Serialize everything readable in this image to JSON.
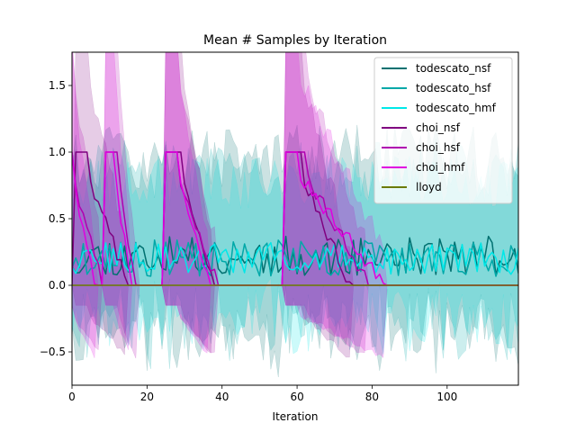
{
  "chart_data": {
    "type": "line",
    "title": "Mean # Samples by Iteration",
    "xlabel": "Iteration",
    "ylabel": "",
    "xlim": [
      0,
      119
    ],
    "ylim": [
      -0.75,
      1.75
    ],
    "xticks": [
      0,
      20,
      40,
      60,
      80,
      100
    ],
    "yticks": [
      -0.5,
      0.0,
      0.5,
      1.0,
      1.5
    ],
    "ytick_labels": [
      "−0.5",
      "0.0",
      "0.5",
      "1.0",
      "1.5"
    ],
    "grid": false,
    "legend_position": "top-right",
    "series": [
      {
        "name": "todescato_nsf",
        "color": "#007070",
        "kind": "noise",
        "seed": 11,
        "base": 0.22,
        "amp": 0.15,
        "band_mean": 0.38,
        "band_amp": 0.55
      },
      {
        "name": "todescato_hsf",
        "color": "#00a8a8",
        "kind": "noise",
        "seed": 23,
        "base": 0.2,
        "amp": 0.14,
        "band_mean": 0.35,
        "band_amp": 0.5
      },
      {
        "name": "todescato_hmf",
        "color": "#00e8e8",
        "kind": "noise",
        "seed": 37,
        "base": 0.2,
        "amp": 0.12,
        "band_mean": 0.3,
        "band_amp": 0.45
      },
      {
        "name": "choi_nsf",
        "color": "#800080",
        "kind": "pulse",
        "pulses": [
          [
            1,
            4,
            15
          ],
          [
            25,
            29,
            38
          ],
          [
            57,
            61,
            74
          ]
        ],
        "band_mean": 0.95,
        "band_amp": 0.7
      },
      {
        "name": "choi_hsf",
        "color": "#b000b0",
        "kind": "pulse",
        "pulses": [
          [
            0,
            0,
            8
          ],
          [
            9,
            12,
            17
          ],
          [
            25,
            28,
            39
          ],
          [
            57,
            62,
            79
          ]
        ],
        "band_mean": 0.95,
        "band_amp": 0.7
      },
      {
        "name": "choi_hmf",
        "color": "#e000e0",
        "kind": "pulse",
        "pulses": [
          [
            0,
            0,
            6
          ],
          [
            9,
            11,
            16
          ],
          [
            25,
            28,
            37
          ],
          [
            57,
            60,
            83
          ]
        ],
        "band_mean": 0.95,
        "band_amp": 0.7
      },
      {
        "name": "lloyd",
        "color": "#6b7a00",
        "kind": "flat",
        "value": 0.0
      }
    ]
  }
}
